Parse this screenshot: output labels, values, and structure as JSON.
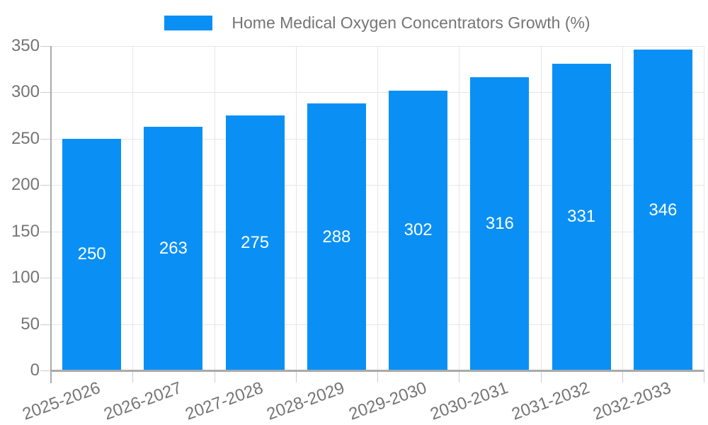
{
  "legend": {
    "label": "Home Medical Oxygen Concentrators Growth (%)"
  },
  "chart_data": {
    "type": "bar",
    "title": "Home Medical Oxygen Concentrators Growth (%)",
    "categories": [
      "2025-2026",
      "2026-2027",
      "2027-2028",
      "2028-2029",
      "2029-2030",
      "2030-2031",
      "2031-2032",
      "2032-2033"
    ],
    "values": [
      250,
      263,
      275,
      288,
      302,
      316,
      331,
      346
    ],
    "xlabel": "",
    "ylabel": "",
    "ylim": [
      0,
      350
    ],
    "yticks": [
      0,
      50,
      100,
      150,
      200,
      250,
      300,
      350
    ],
    "grid": true,
    "legend_position": "top",
    "x_label_rotation": -20,
    "bar_color": "#0a90f5",
    "value_label_color": "#ffffff",
    "axis_text_color": "#757575",
    "gridline_color": "#e6e6e6",
    "axis_line_color": "#aaaaaa"
  }
}
